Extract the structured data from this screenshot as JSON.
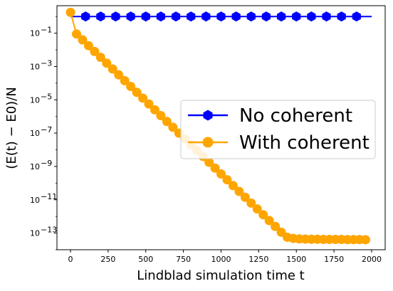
{
  "chart_data": {
    "type": "line",
    "title": "",
    "xlabel": "Lindblad simulation time t",
    "ylabel": "(E(t) − E0)/N",
    "yscale": "log",
    "xlim": [
      -90,
      2090
    ],
    "ylim_exponent": [
      -14,
      0.65
    ],
    "x_ticks": [
      0,
      250,
      500,
      750,
      1000,
      1250,
      1500,
      1750,
      2000
    ],
    "x_tick_labels": [
      "0",
      "250",
      "500",
      "750",
      "1000",
      "1250",
      "1500",
      "1750",
      "2000"
    ],
    "y_tick_exponents": [
      -1,
      -3,
      -5,
      -7,
      -9,
      -11,
      -13
    ],
    "y_tick_labels": [
      "10",
      "10",
      "10",
      "10",
      "10",
      "10",
      "10"
    ],
    "y_tick_superscripts": [
      "−1",
      "−3",
      "−5",
      "−7",
      "−9",
      "−11",
      "−13"
    ],
    "legend": {
      "placement": "center-right"
    },
    "series": [
      {
        "name": "No coherent",
        "color": "#0000ff",
        "marker": "hexagon",
        "x_start": 0,
        "x_end": 2000,
        "y": 1.0,
        "marker_x": [
          100,
          200,
          300,
          400,
          500,
          600,
          700,
          800,
          900,
          1000,
          1100,
          1200,
          1300,
          1400,
          1500,
          1600,
          1700,
          1800,
          1900
        ]
      },
      {
        "name": "With coherent",
        "color": "#ffa500",
        "marker": "circle",
        "x": [
          0,
          40,
          80,
          120,
          160,
          200,
          240,
          280,
          320,
          360,
          400,
          440,
          480,
          520,
          560,
          600,
          640,
          680,
          720,
          760,
          800,
          840,
          880,
          920,
          960,
          1000,
          1040,
          1080,
          1120,
          1160,
          1200,
          1240,
          1280,
          1320,
          1360,
          1400,
          1440,
          1480,
          1520,
          1560,
          1600,
          1640,
          1680,
          1720,
          1760,
          1800,
          1840,
          1880,
          1920,
          1960
        ],
        "y_exponent": [
          0.25,
          -1.05,
          -1.4,
          -1.75,
          -2.1,
          -2.45,
          -2.8,
          -3.15,
          -3.5,
          -3.85,
          -4.2,
          -4.55,
          -4.9,
          -5.25,
          -5.6,
          -5.95,
          -6.3,
          -6.65,
          -7.0,
          -7.35,
          -7.7,
          -8.05,
          -8.4,
          -8.75,
          -9.1,
          -9.45,
          -9.8,
          -10.15,
          -10.5,
          -10.85,
          -11.2,
          -11.55,
          -11.9,
          -12.25,
          -12.6,
          -12.95,
          -13.25,
          -13.32,
          -13.35,
          -13.36,
          -13.37,
          -13.37,
          -13.38,
          -13.38,
          -13.38,
          -13.38,
          -13.39,
          -13.39,
          -13.39,
          -13.4
        ]
      }
    ]
  }
}
